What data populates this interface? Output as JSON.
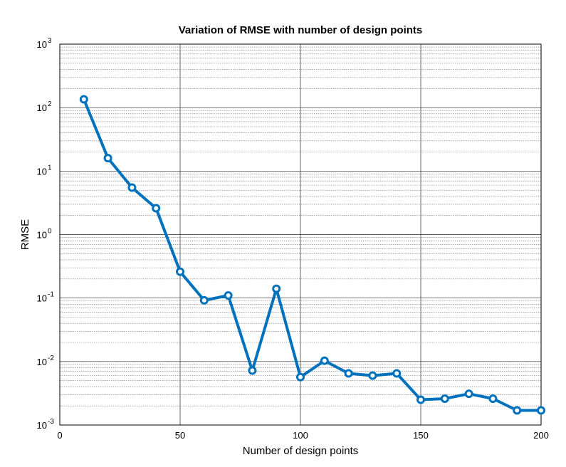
{
  "chart_data": {
    "type": "line",
    "title": "Variation of RMSE with number of design points",
    "xlabel": "Number of design points",
    "ylabel": "RMSE",
    "xlim": [
      0,
      200
    ],
    "ylim": [
      0.001,
      1000
    ],
    "yscale": "log",
    "grid": true,
    "minor_grid": true,
    "x_ticks": [
      {
        "value": 0,
        "label": "0"
      },
      {
        "value": 50,
        "label": "50"
      },
      {
        "value": 100,
        "label": "100"
      },
      {
        "value": 150,
        "label": "150"
      },
      {
        "value": 200,
        "label": "200"
      }
    ],
    "y_ticks": [
      {
        "value": 0.001,
        "base": "10",
        "exp": "-3"
      },
      {
        "value": 0.01,
        "base": "10",
        "exp": "-2"
      },
      {
        "value": 0.1,
        "base": "10",
        "exp": "-1"
      },
      {
        "value": 1,
        "base": "10",
        "exp": "0"
      },
      {
        "value": 10,
        "base": "10",
        "exp": "1"
      },
      {
        "value": 100,
        "base": "10",
        "exp": "2"
      },
      {
        "value": 1000,
        "base": "10",
        "exp": "3"
      }
    ],
    "series": [
      {
        "color": "#0072BD",
        "marker": "circle",
        "x": [
          10,
          20,
          30,
          40,
          50,
          60,
          70,
          80,
          90,
          100,
          110,
          120,
          130,
          140,
          150,
          160,
          170,
          180,
          190,
          200
        ],
        "y": [
          135,
          16,
          5.5,
          2.6,
          0.26,
          0.092,
          0.11,
          0.0072,
          0.14,
          0.0057,
          0.0103,
          0.0065,
          0.006,
          0.0065,
          0.0025,
          0.0026,
          0.0031,
          0.0026,
          0.0017,
          0.0017
        ]
      }
    ]
  }
}
